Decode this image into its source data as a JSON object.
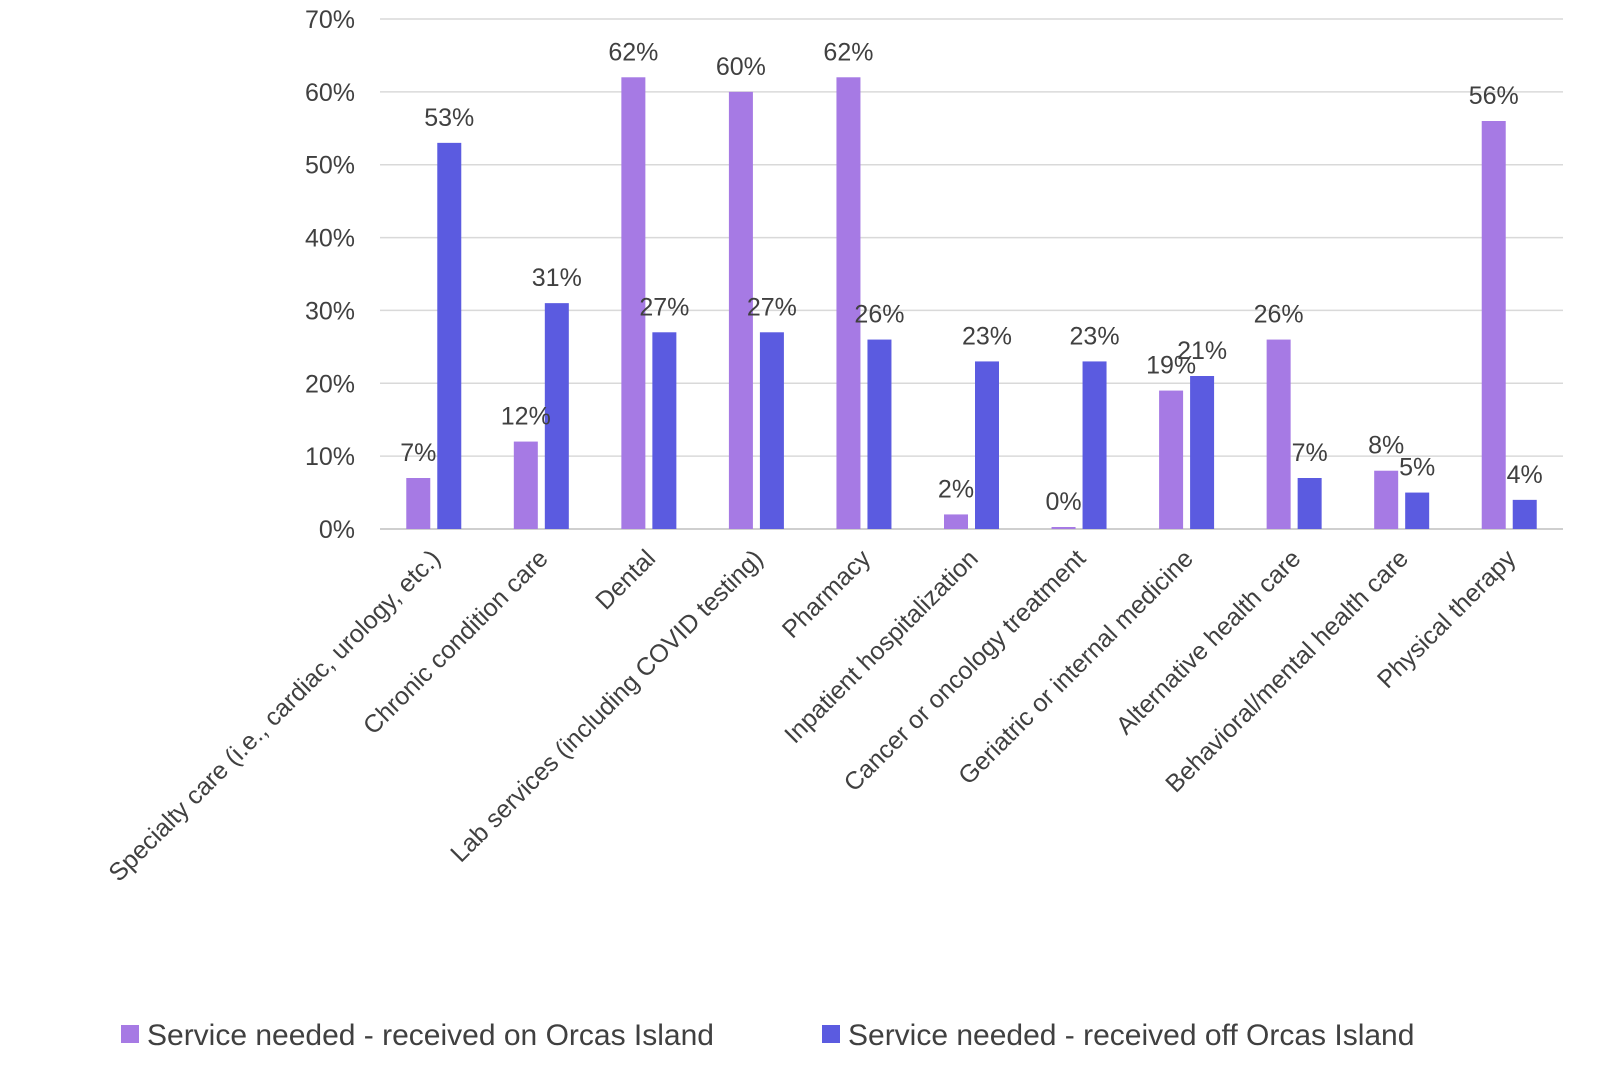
{
  "chart_data": {
    "type": "bar",
    "title": "",
    "xlabel": "",
    "ylabel": "",
    "ylim": [
      0,
      70
    ],
    "yticks": [
      "0%",
      "10%",
      "20%",
      "30%",
      "40%",
      "50%",
      "60%",
      "70%"
    ],
    "grid": true,
    "legend_position": "bottom",
    "categories": [
      "Specialty care (i.e., cardiac, urology, etc.)",
      "Chronic condition care",
      "Dental",
      "Lab services (including COVID testing)",
      "Pharmacy",
      "Inpatient hospitalization",
      "Cancer or oncology treatment",
      "Geriatric or internal medicine",
      "Alternative health care",
      "Behavioral/mental health care",
      "Physical therapy"
    ],
    "series": [
      {
        "name": "Service needed - received on Orcas Island",
        "color": "#a67ae4",
        "values": [
          7,
          12,
          62,
          60,
          62,
          2,
          0,
          19,
          26,
          8,
          56
        ],
        "labels": [
          "7%",
          "12%",
          "62%",
          "60%",
          "62%",
          "2%",
          "0%",
          "19%",
          "26%",
          "8%",
          "56%"
        ]
      },
      {
        "name": "Service needed - received off Orcas Island",
        "color": "#5b5be0",
        "values": [
          53,
          31,
          27,
          27,
          26,
          23,
          23,
          21,
          7,
          5,
          4
        ],
        "labels": [
          "53%",
          "31%",
          "27%",
          "27%",
          "26%",
          "23%",
          "23%",
          "21%",
          "7%",
          "5%",
          "4%"
        ]
      }
    ]
  }
}
